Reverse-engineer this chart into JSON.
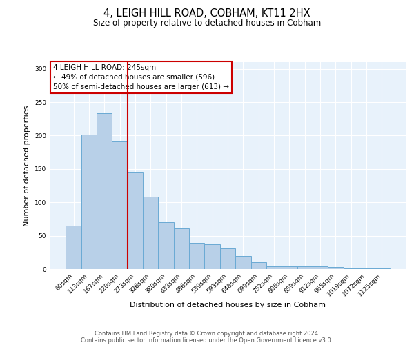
{
  "title": "4, LEIGH HILL ROAD, COBHAM, KT11 2HX",
  "subtitle": "Size of property relative to detached houses in Cobham",
  "xlabel": "Distribution of detached houses by size in Cobham",
  "ylabel": "Number of detached properties",
  "bar_labels": [
    "60sqm",
    "113sqm",
    "167sqm",
    "220sqm",
    "273sqm",
    "326sqm",
    "380sqm",
    "433sqm",
    "486sqm",
    "539sqm",
    "593sqm",
    "646sqm",
    "699sqm",
    "752sqm",
    "806sqm",
    "859sqm",
    "912sqm",
    "965sqm",
    "1019sqm",
    "1072sqm",
    "1125sqm"
  ],
  "bar_values": [
    65,
    202,
    234,
    191,
    145,
    108,
    70,
    61,
    39,
    37,
    31,
    20,
    10,
    4,
    4,
    4,
    4,
    3,
    1,
    1,
    1
  ],
  "bar_color": "#b8d0e8",
  "bar_edge_color": "#6aaad4",
  "vline_color": "#cc0000",
  "annotation_line1": "4 LEIGH HILL ROAD: 245sqm",
  "annotation_line2": "← 49% of detached houses are smaller (596)",
  "annotation_line3": "50% of semi-detached houses are larger (613) →",
  "ylim": [
    0,
    310
  ],
  "yticks": [
    0,
    50,
    100,
    150,
    200,
    250,
    300
  ],
  "bg_color": "#e8f2fb",
  "footer_line1": "Contains HM Land Registry data © Crown copyright and database right 2024.",
  "footer_line2": "Contains public sector information licensed under the Open Government Licence v3.0."
}
